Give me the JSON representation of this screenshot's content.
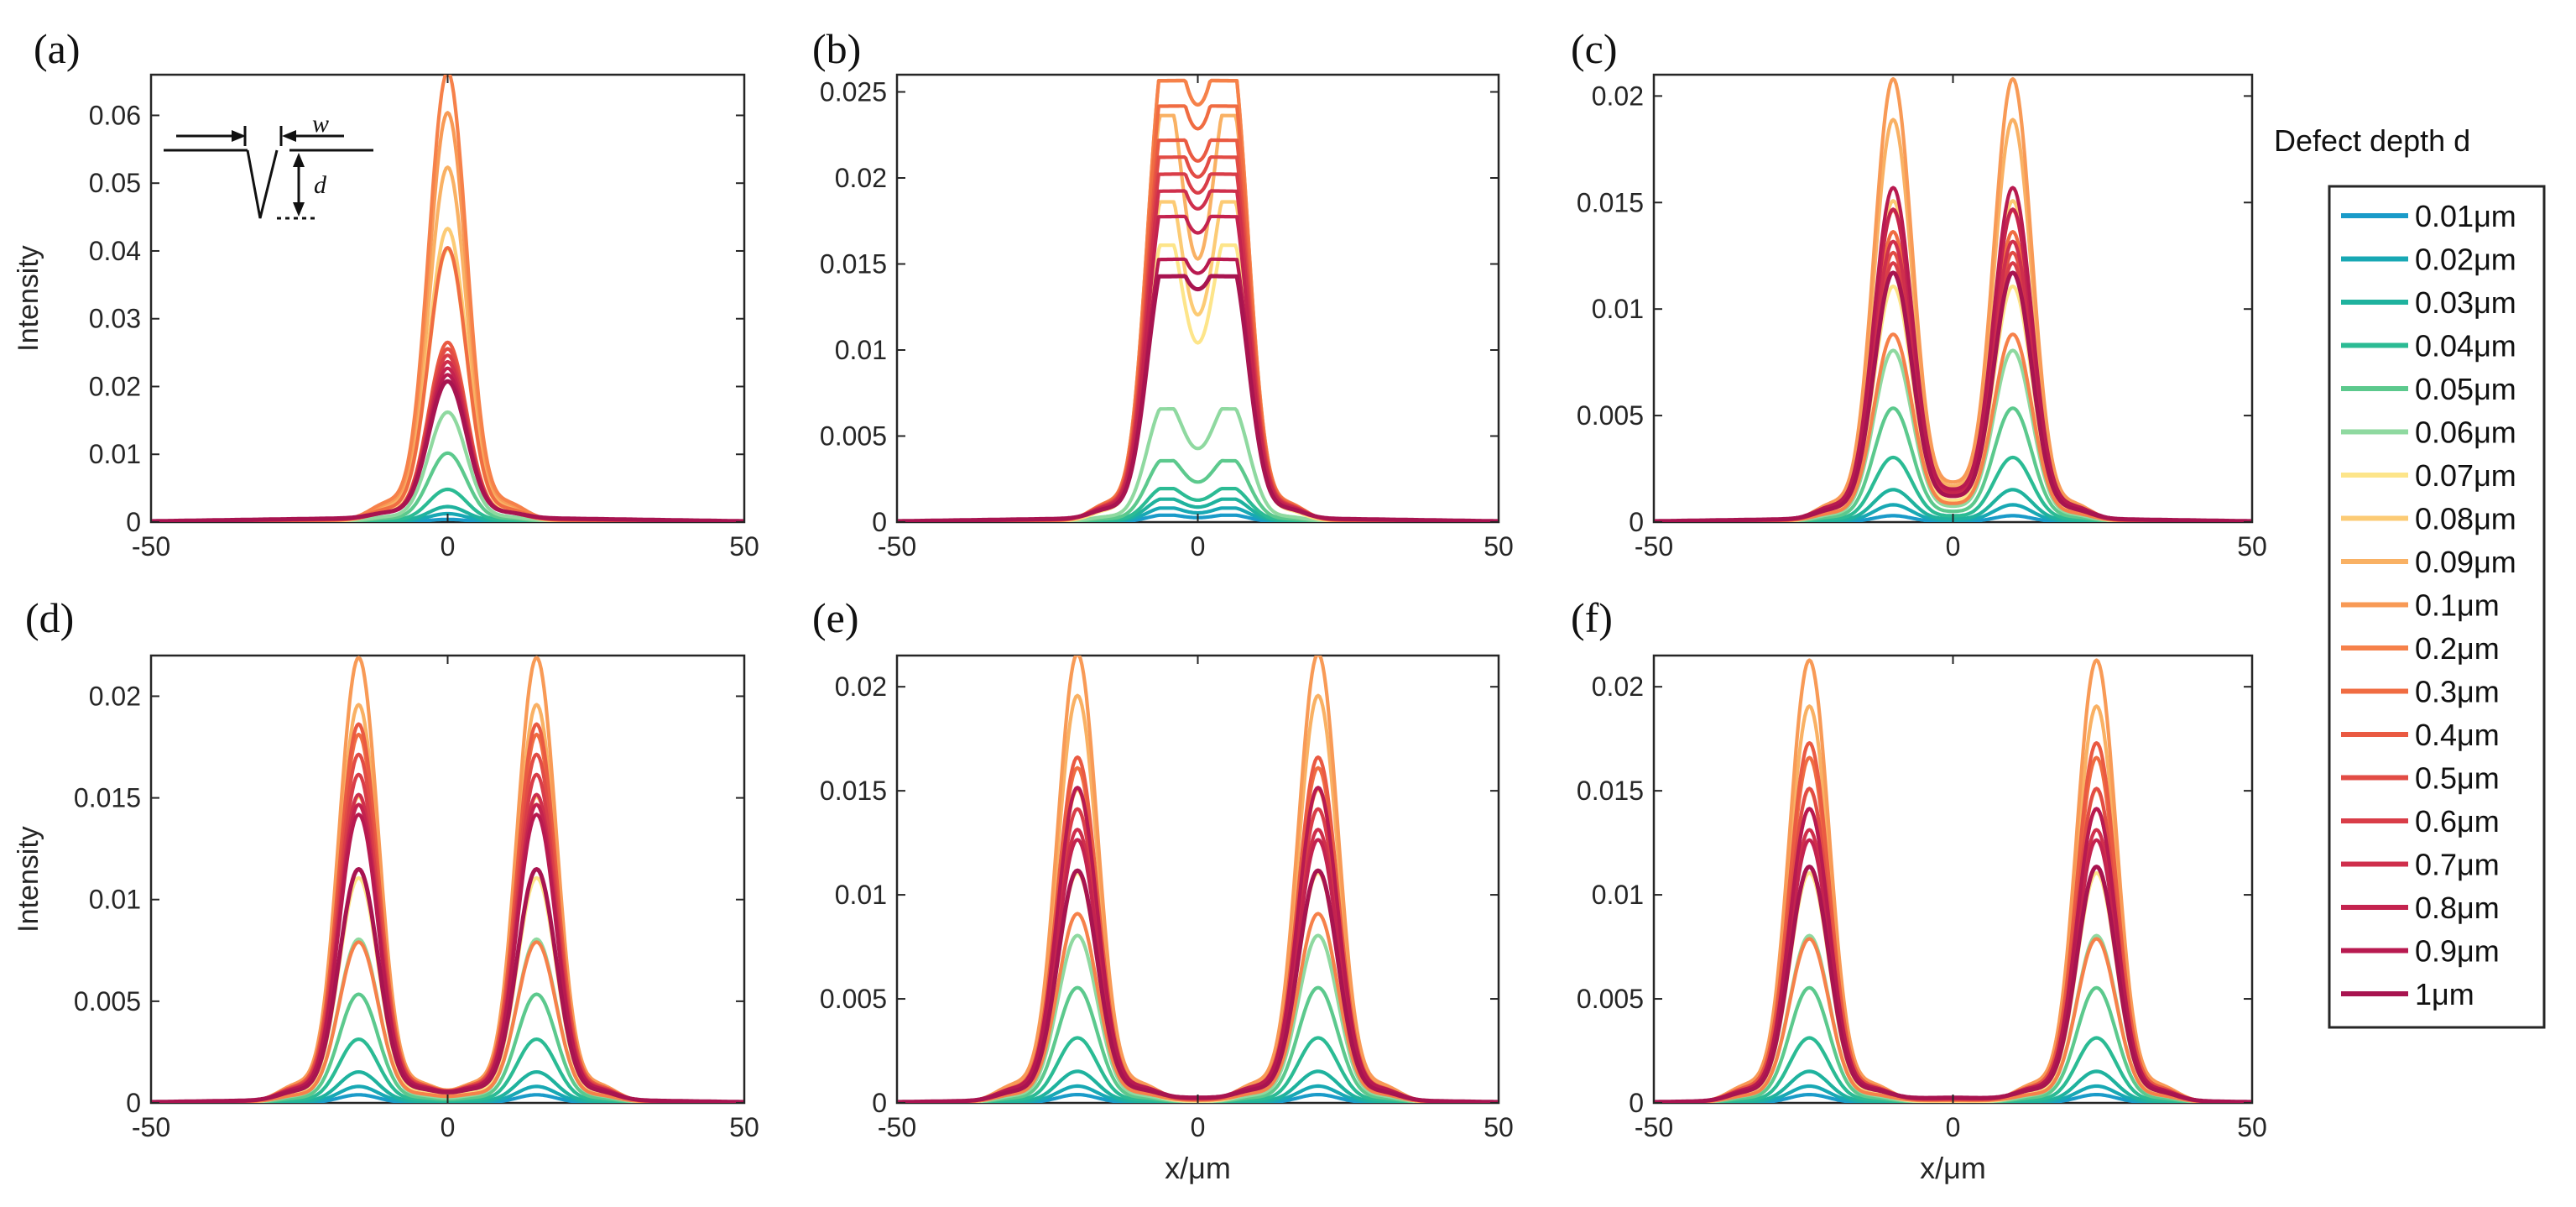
{
  "legend": {
    "title": "Defect depth d",
    "entries": [
      "0.01μm",
      "0.02μm",
      "0.03μm",
      "0.04μm",
      "0.05μm",
      "0.06μm",
      "0.07μm",
      "0.08μm",
      "0.09μm",
      "0.1μm",
      "0.2μm",
      "0.3μm",
      "0.4μm",
      "0.5μm",
      "0.6μm",
      "0.7μm",
      "0.8μm",
      "0.9μm",
      "1μm"
    ],
    "colors": [
      "#1a9bc9",
      "#18a8b4",
      "#1fb29e",
      "#2bbb94",
      "#5cc98d",
      "#8fd9a0",
      "#fde58a",
      "#fccb75",
      "#f9b164",
      "#f89a56",
      "#f6814a",
      "#f06c42",
      "#ea5a42",
      "#e24c45",
      "#d93d48",
      "#cf2f4c",
      "#c4234f",
      "#b81a50",
      "#a81450"
    ]
  },
  "inset": {
    "w_label": "w",
    "d_label": "d"
  },
  "chart_data": [
    {
      "type": "line",
      "panel_label": "(a)",
      "xlabel": "",
      "ylabel": "Intensity",
      "xlim": [
        -50,
        50
      ],
      "ylim": [
        0,
        0.066
      ],
      "xticks": [
        "-50",
        "0",
        "50"
      ],
      "yticks": [
        "0",
        "0.01",
        "0.02",
        "0.03",
        "0.04",
        "0.05",
        "0.06"
      ],
      "peak_positions": [
        0
      ],
      "peak_width": 3.2,
      "dip_at_center": false,
      "series_peaks": [
        0.0004,
        0.0012,
        0.0022,
        0.0047,
        0.01,
        0.016,
        0.04,
        0.043,
        0.052,
        0.06,
        0.066,
        0.04,
        0.026,
        0.025,
        0.024,
        0.023,
        0.022,
        0.021,
        0.02
      ]
    },
    {
      "type": "line",
      "panel_label": "(b)",
      "xlabel": "",
      "ylabel": "",
      "xlim": [
        -50,
        50
      ],
      "ylim": [
        0,
        0.026
      ],
      "xticks": [
        "-50",
        "0",
        "50"
      ],
      "yticks": [
        "0",
        "0.005",
        "0.01",
        "0.015",
        "0.02",
        "0.025"
      ],
      "peak_positions": [
        -5.5,
        5.5
      ],
      "peak_width": 3.0,
      "dip_at_center": true,
      "series_peaks": [
        0.0004,
        0.0008,
        0.0013,
        0.0019,
        0.0035,
        0.0065,
        0.016,
        0.0185,
        0.0235,
        0.0255,
        0.0255,
        0.024,
        0.022,
        0.021,
        0.02,
        0.019,
        0.0175,
        0.015,
        0.014
      ]
    },
    {
      "type": "line",
      "panel_label": "(c)",
      "xlabel": "",
      "ylabel": "",
      "xlim": [
        -50,
        50
      ],
      "ylim": [
        0,
        0.021
      ],
      "xticks": [
        "-50",
        "0",
        "50"
      ],
      "yticks": [
        "0",
        "0.005",
        "0.01",
        "0.015",
        "0.02"
      ],
      "peak_positions": [
        -10,
        10
      ],
      "peak_width": 3.2,
      "dip_at_center": false,
      "series_peaks": [
        0.0003,
        0.0008,
        0.0015,
        0.003,
        0.0053,
        0.008,
        0.011,
        0.015,
        0.0188,
        0.0207,
        0.0087,
        0.0135,
        0.0145,
        0.0125,
        0.012,
        0.013,
        0.0145,
        0.0155,
        0.0115
      ]
    },
    {
      "type": "line",
      "panel_label": "(d)",
      "xlabel": "",
      "ylabel": "Intensity",
      "xlim": [
        -50,
        50
      ],
      "ylim": [
        0,
        0.022
      ],
      "xticks": [
        "-50",
        "0",
        "50"
      ],
      "yticks": [
        "0",
        "0.005",
        "0.01",
        "0.015",
        "0.02"
      ],
      "peak_positions": [
        -15,
        15
      ],
      "peak_width": 3.3,
      "dip_at_center": false,
      "series_peaks": [
        0.0004,
        0.0008,
        0.0015,
        0.0031,
        0.0053,
        0.008,
        0.011,
        0.015,
        0.0195,
        0.0218,
        0.0078,
        0.018,
        0.0185,
        0.017,
        0.016,
        0.015,
        0.0145,
        0.014,
        0.0113
      ]
    },
    {
      "type": "line",
      "panel_label": "(e)",
      "xlabel": "x/μm",
      "ylabel": "",
      "xlim": [
        -50,
        50
      ],
      "ylim": [
        0,
        0.0215
      ],
      "xticks": [
        "-50",
        "0",
        "50"
      ],
      "yticks": [
        "0",
        "0.005",
        "0.01",
        "0.015",
        "0.02"
      ],
      "peak_positions": [
        -20,
        20
      ],
      "peak_width": 3.3,
      "dip_at_center": false,
      "series_peaks": [
        0.0004,
        0.0008,
        0.0015,
        0.0031,
        0.0055,
        0.008,
        0.011,
        0.015,
        0.0195,
        0.0215,
        0.009,
        0.016,
        0.0165,
        0.015,
        0.014,
        0.013,
        0.0125,
        0.015,
        0.011
      ]
    },
    {
      "type": "line",
      "panel_label": "(f)",
      "xlabel": "x/μm",
      "ylabel": "",
      "xlim": [
        -50,
        50
      ],
      "ylim": [
        0,
        0.0215
      ],
      "xticks": [
        "-50",
        "0",
        "50"
      ],
      "yticks": [
        "0",
        "0.005",
        "0.01",
        "0.015",
        "0.02"
      ],
      "peak_positions": [
        -24,
        24
      ],
      "peak_width": 3.3,
      "dip_at_center": false,
      "series_peaks": [
        0.0004,
        0.0008,
        0.0015,
        0.0031,
        0.0055,
        0.008,
        0.011,
        0.015,
        0.019,
        0.0212,
        0.0078,
        0.0165,
        0.0172,
        0.015,
        0.014,
        0.013,
        0.0125,
        0.014,
        0.0112
      ]
    }
  ]
}
